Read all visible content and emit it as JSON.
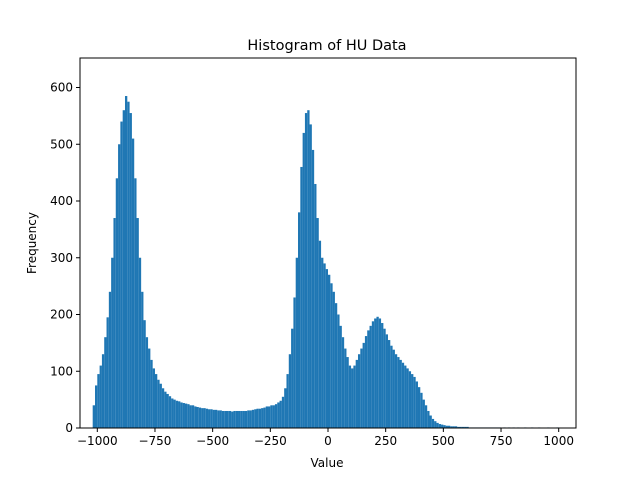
{
  "colors": {
    "bar": "#1f77b4",
    "axes": "#000000",
    "background": "#ffffff"
  },
  "chart_data": {
    "type": "bar",
    "title": "Histogram of HU Data",
    "xlabel": "Value",
    "ylabel": "Frequency",
    "xlim": [
      -1075,
      1075
    ],
    "ylim": [
      0,
      652
    ],
    "grid": false,
    "legend": "none",
    "x_ticks": [
      -1000,
      -750,
      -500,
      -250,
      0,
      250,
      500,
      750,
      1000
    ],
    "x_tick_labels": [
      "−1000",
      "−750",
      "−500",
      "−250",
      "0",
      "250",
      "500",
      "750",
      "1000"
    ],
    "y_ticks": [
      0,
      100,
      200,
      300,
      400,
      500,
      600
    ],
    "y_tick_labels": [
      "0",
      "100",
      "200",
      "300",
      "400",
      "500",
      "600"
    ],
    "bin_width": 10,
    "bins": [
      {
        "x": -1020,
        "y": 40
      },
      {
        "x": -1010,
        "y": 75
      },
      {
        "x": -1000,
        "y": 95
      },
      {
        "x": -990,
        "y": 110
      },
      {
        "x": -980,
        "y": 130
      },
      {
        "x": -970,
        "y": 160
      },
      {
        "x": -960,
        "y": 195
      },
      {
        "x": -950,
        "y": 240
      },
      {
        "x": -940,
        "y": 300
      },
      {
        "x": -930,
        "y": 370
      },
      {
        "x": -920,
        "y": 440
      },
      {
        "x": -910,
        "y": 500
      },
      {
        "x": -900,
        "y": 540
      },
      {
        "x": -890,
        "y": 560
      },
      {
        "x": -880,
        "y": 585
      },
      {
        "x": -870,
        "y": 575
      },
      {
        "x": -860,
        "y": 555
      },
      {
        "x": -850,
        "y": 510
      },
      {
        "x": -840,
        "y": 440
      },
      {
        "x": -830,
        "y": 370
      },
      {
        "x": -820,
        "y": 300
      },
      {
        "x": -810,
        "y": 240
      },
      {
        "x": -800,
        "y": 190
      },
      {
        "x": -790,
        "y": 160
      },
      {
        "x": -780,
        "y": 140
      },
      {
        "x": -770,
        "y": 120
      },
      {
        "x": -760,
        "y": 105
      },
      {
        "x": -750,
        "y": 95
      },
      {
        "x": -740,
        "y": 85
      },
      {
        "x": -730,
        "y": 78
      },
      {
        "x": -720,
        "y": 70
      },
      {
        "x": -710,
        "y": 64
      },
      {
        "x": -700,
        "y": 60
      },
      {
        "x": -690,
        "y": 56
      },
      {
        "x": -680,
        "y": 52
      },
      {
        "x": -670,
        "y": 50
      },
      {
        "x": -660,
        "y": 48
      },
      {
        "x": -650,
        "y": 47
      },
      {
        "x": -640,
        "y": 45
      },
      {
        "x": -630,
        "y": 44
      },
      {
        "x": -620,
        "y": 43
      },
      {
        "x": -610,
        "y": 42
      },
      {
        "x": -600,
        "y": 40
      },
      {
        "x": -590,
        "y": 40
      },
      {
        "x": -580,
        "y": 38
      },
      {
        "x": -570,
        "y": 37
      },
      {
        "x": -560,
        "y": 36
      },
      {
        "x": -550,
        "y": 35
      },
      {
        "x": -540,
        "y": 35
      },
      {
        "x": -530,
        "y": 34
      },
      {
        "x": -520,
        "y": 33
      },
      {
        "x": -510,
        "y": 33
      },
      {
        "x": -500,
        "y": 32
      },
      {
        "x": -490,
        "y": 32
      },
      {
        "x": -480,
        "y": 31
      },
      {
        "x": -470,
        "y": 31
      },
      {
        "x": -460,
        "y": 30
      },
      {
        "x": -450,
        "y": 30
      },
      {
        "x": -440,
        "y": 30
      },
      {
        "x": -430,
        "y": 30
      },
      {
        "x": -420,
        "y": 29
      },
      {
        "x": -410,
        "y": 30
      },
      {
        "x": -400,
        "y": 30
      },
      {
        "x": -390,
        "y": 30
      },
      {
        "x": -380,
        "y": 30
      },
      {
        "x": -370,
        "y": 30
      },
      {
        "x": -360,
        "y": 30
      },
      {
        "x": -350,
        "y": 31
      },
      {
        "x": -340,
        "y": 31
      },
      {
        "x": -330,
        "y": 32
      },
      {
        "x": -320,
        "y": 33
      },
      {
        "x": -310,
        "y": 34
      },
      {
        "x": -300,
        "y": 34
      },
      {
        "x": -290,
        "y": 35
      },
      {
        "x": -280,
        "y": 36
      },
      {
        "x": -270,
        "y": 38
      },
      {
        "x": -260,
        "y": 38
      },
      {
        "x": -250,
        "y": 40
      },
      {
        "x": -240,
        "y": 40
      },
      {
        "x": -230,
        "y": 42
      },
      {
        "x": -220,
        "y": 45
      },
      {
        "x": -210,
        "y": 48
      },
      {
        "x": -200,
        "y": 55
      },
      {
        "x": -190,
        "y": 70
      },
      {
        "x": -180,
        "y": 95
      },
      {
        "x": -170,
        "y": 130
      },
      {
        "x": -160,
        "y": 175
      },
      {
        "x": -150,
        "y": 230
      },
      {
        "x": -140,
        "y": 300
      },
      {
        "x": -130,
        "y": 380
      },
      {
        "x": -120,
        "y": 460
      },
      {
        "x": -110,
        "y": 520
      },
      {
        "x": -100,
        "y": 555
      },
      {
        "x": -90,
        "y": 560
      },
      {
        "x": -80,
        "y": 535
      },
      {
        "x": -70,
        "y": 490
      },
      {
        "x": -60,
        "y": 430
      },
      {
        "x": -50,
        "y": 370
      },
      {
        "x": -40,
        "y": 330
      },
      {
        "x": -30,
        "y": 300
      },
      {
        "x": -20,
        "y": 290
      },
      {
        "x": -10,
        "y": 280
      },
      {
        "x": 0,
        "y": 270
      },
      {
        "x": 10,
        "y": 255
      },
      {
        "x": 20,
        "y": 240
      },
      {
        "x": 30,
        "y": 220
      },
      {
        "x": 40,
        "y": 200
      },
      {
        "x": 50,
        "y": 180
      },
      {
        "x": 60,
        "y": 160
      },
      {
        "x": 70,
        "y": 140
      },
      {
        "x": 80,
        "y": 125
      },
      {
        "x": 90,
        "y": 110
      },
      {
        "x": 100,
        "y": 105
      },
      {
        "x": 110,
        "y": 110
      },
      {
        "x": 120,
        "y": 120
      },
      {
        "x": 130,
        "y": 130
      },
      {
        "x": 140,
        "y": 140
      },
      {
        "x": 150,
        "y": 150
      },
      {
        "x": 160,
        "y": 162
      },
      {
        "x": 170,
        "y": 172
      },
      {
        "x": 180,
        "y": 180
      },
      {
        "x": 190,
        "y": 188
      },
      {
        "x": 200,
        "y": 193
      },
      {
        "x": 210,
        "y": 196
      },
      {
        "x": 220,
        "y": 193
      },
      {
        "x": 230,
        "y": 185
      },
      {
        "x": 240,
        "y": 175
      },
      {
        "x": 250,
        "y": 165
      },
      {
        "x": 260,
        "y": 155
      },
      {
        "x": 270,
        "y": 145
      },
      {
        "x": 280,
        "y": 138
      },
      {
        "x": 290,
        "y": 130
      },
      {
        "x": 300,
        "y": 125
      },
      {
        "x": 310,
        "y": 120
      },
      {
        "x": 320,
        "y": 115
      },
      {
        "x": 330,
        "y": 110
      },
      {
        "x": 340,
        "y": 105
      },
      {
        "x": 350,
        "y": 100
      },
      {
        "x": 360,
        "y": 95
      },
      {
        "x": 370,
        "y": 90
      },
      {
        "x": 380,
        "y": 82
      },
      {
        "x": 390,
        "y": 72
      },
      {
        "x": 400,
        "y": 62
      },
      {
        "x": 410,
        "y": 50
      },
      {
        "x": 420,
        "y": 40
      },
      {
        "x": 430,
        "y": 30
      },
      {
        "x": 440,
        "y": 22
      },
      {
        "x": 450,
        "y": 16
      },
      {
        "x": 460,
        "y": 12
      },
      {
        "x": 470,
        "y": 9
      },
      {
        "x": 480,
        "y": 7
      },
      {
        "x": 490,
        "y": 6
      },
      {
        "x": 500,
        "y": 5
      },
      {
        "x": 510,
        "y": 4
      },
      {
        "x": 520,
        "y": 4
      },
      {
        "x": 530,
        "y": 3
      },
      {
        "x": 540,
        "y": 3
      },
      {
        "x": 550,
        "y": 3
      },
      {
        "x": 560,
        "y": 2
      },
      {
        "x": 570,
        "y": 2
      },
      {
        "x": 580,
        "y": 2
      },
      {
        "x": 590,
        "y": 2
      },
      {
        "x": 600,
        "y": 2
      },
      {
        "x": 610,
        "y": 1
      },
      {
        "x": 620,
        "y": 1
      },
      {
        "x": 630,
        "y": 1
      },
      {
        "x": 640,
        "y": 1
      },
      {
        "x": 650,
        "y": 1
      },
      {
        "x": 660,
        "y": 1
      },
      {
        "x": 670,
        "y": 1
      },
      {
        "x": 680,
        "y": 1
      },
      {
        "x": 690,
        "y": 1
      },
      {
        "x": 700,
        "y": 1
      },
      {
        "x": 710,
        "y": 1
      },
      {
        "x": 720,
        "y": 1
      },
      {
        "x": 730,
        "y": 1
      },
      {
        "x": 740,
        "y": 1
      },
      {
        "x": 760,
        "y": 1
      },
      {
        "x": 780,
        "y": 1
      },
      {
        "x": 800,
        "y": 1
      },
      {
        "x": 820,
        "y": 1
      },
      {
        "x": 850,
        "y": 1
      },
      {
        "x": 880,
        "y": 1
      },
      {
        "x": 910,
        "y": 1
      },
      {
        "x": 950,
        "y": 1
      },
      {
        "x": 990,
        "y": 1
      }
    ]
  }
}
